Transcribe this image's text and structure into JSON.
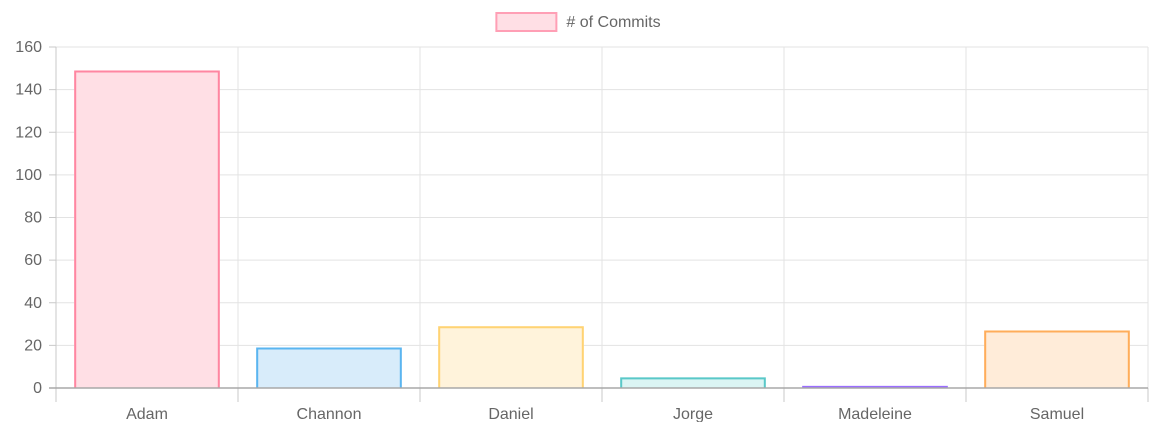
{
  "chart_data": {
    "type": "bar",
    "categories": [
      "Adam",
      "Channon",
      "Daniel",
      "Jorge",
      "Madeleine",
      "Samuel"
    ],
    "series": [
      {
        "name": "# of Commits",
        "values": [
          149,
          19,
          29,
          5,
          1,
          27
        ]
      }
    ],
    "ylim": [
      0,
      160
    ],
    "yticks": [
      0,
      20,
      40,
      60,
      80,
      100,
      120,
      140,
      160
    ],
    "grid": true,
    "legend": "top-center",
    "bar_fill_colors": [
      "#ffdfe5",
      "#d8ecfa",
      "#fff3db",
      "#dbf5f4",
      "#ebe0ff",
      "#ffecd9"
    ],
    "bar_border_colors": [
      "#ff86a1",
      "#5ab5f0",
      "#ffd373",
      "#5ac8c8",
      "#9b6dff",
      "#ffad5a"
    ],
    "legend_color": "#ff9fb5",
    "legend_fill": "#ffdfe5"
  }
}
